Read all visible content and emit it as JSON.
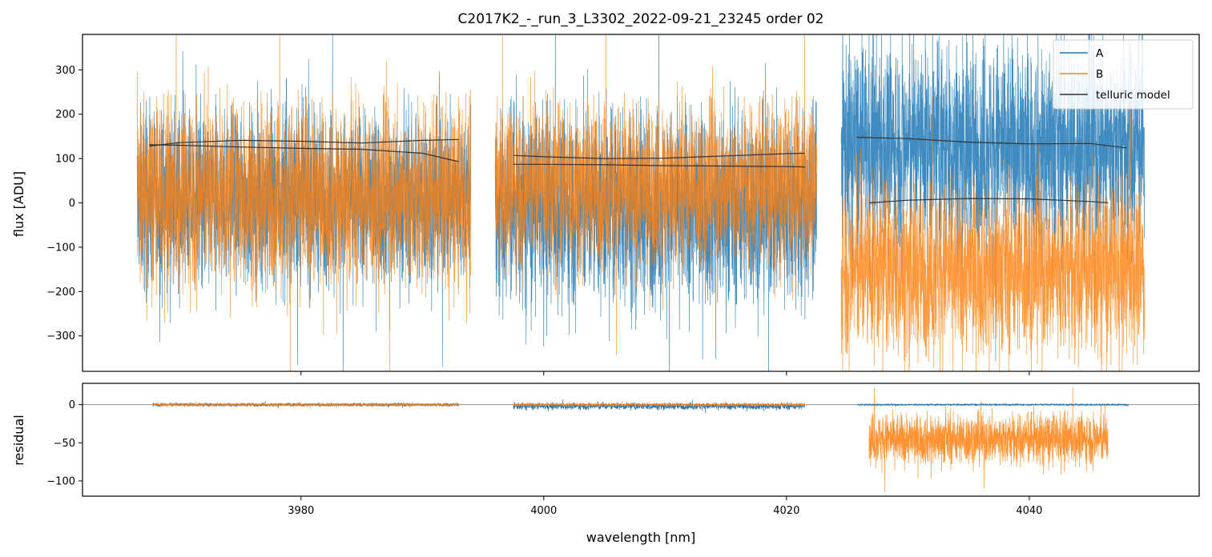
{
  "chart_data": {
    "type": "line",
    "title": "C2017K2_-_run_3_L3302_2022-09-21_23245  order 02",
    "xlabel": "wavelength [nm]",
    "xlim": [
      3962,
      4054
    ],
    "x_ticks": [
      3980,
      4000,
      4020,
      4040
    ],
    "colors": {
      "A": "#1f77b4",
      "B": "#ff7f0e",
      "telluric": "#333333",
      "zero_line": "#808080"
    },
    "legend": {
      "location": "upper right",
      "entries": [
        "A",
        "B",
        "telluric model"
      ]
    },
    "segments": [
      {
        "name": "segment-1",
        "x_start": 3966.5,
        "x_end": 3994.0,
        "A_level": 10,
        "B_level": 20,
        "A_noise": 175,
        "B_noise": 185
      },
      {
        "name": "segment-2",
        "x_start": 3996.0,
        "x_end": 4022.5,
        "A_level": -10,
        "B_level": 40,
        "A_noise": 200,
        "B_noise": 165
      },
      {
        "name": "segment-3",
        "x_start": 4024.5,
        "x_end": 4049.5,
        "A_level": 130,
        "B_level": -150,
        "A_noise": 210,
        "B_noise": 175
      }
    ],
    "panels": [
      {
        "name": "flux",
        "ylabel": "flux [ADU]",
        "ylim": [
          -380,
          380
        ],
        "y_ticks": [
          300,
          200,
          100,
          0,
          -100,
          -200,
          -300
        ],
        "y_tick_labels": [
          "300",
          "200",
          "100",
          "0",
          "−100",
          "−200",
          "−300"
        ],
        "telluric_models": [
          {
            "x": [
              3967.5,
              3970,
              3975,
              3980,
              3985,
              3990,
              3993
            ],
            "y": [
              128,
              136,
              141,
              139,
              135,
              141,
              143
            ]
          },
          {
            "x": [
              3967.5,
              3970,
              3975,
              3980,
              3985,
              3990,
              3993
            ],
            "y": [
              131,
              130,
              126,
              123,
              121,
              112,
              93
            ]
          },
          {
            "x": [
              3997.5,
              4000,
              4005,
              4010,
              4015,
              4020,
              4021.5
            ],
            "y": [
              107,
              104,
              100,
              101,
              106,
              111,
              112
            ]
          },
          {
            "x": [
              3997.5,
              4000,
              4005,
              4010,
              4015,
              4020,
              4021.5
            ],
            "y": [
              87,
              87,
              86,
              84,
              83,
              82,
              81
            ]
          },
          {
            "x": [
              4025.8,
              4030,
              4035,
              4040,
              4045,
              4048
            ],
            "y": [
              148,
              145,
              137,
              133,
              134,
              124
            ]
          },
          {
            "x": [
              4026.8,
              4030,
              4035,
              4040,
              4045,
              4046.5
            ],
            "y": [
              0,
              6,
              10,
              9,
              3,
              0
            ]
          }
        ]
      },
      {
        "name": "residual",
        "ylabel": "residual",
        "ylim": [
          -120,
          28
        ],
        "y_ticks": [
          0,
          -50,
          -100
        ],
        "y_tick_labels": [
          "0",
          "−50",
          "−100"
        ],
        "residual_segments": [
          {
            "x_start": 3967.8,
            "x_end": 3993.0,
            "A_level": 0,
            "A_noise": 2,
            "B_level": 0,
            "B_noise": 2
          },
          {
            "x_start": 3997.5,
            "x_end": 4021.5,
            "A_level": -2,
            "A_noise": 4,
            "B_level": 0,
            "B_noise": 2
          },
          {
            "x_start": 4025.8,
            "x_end": 4048.2,
            "A_level": 0,
            "A_noise": 1
          },
          {
            "x_start": 4026.8,
            "x_end": 4046.5,
            "B_level": -45,
            "B_noise": 30
          }
        ]
      }
    ]
  }
}
